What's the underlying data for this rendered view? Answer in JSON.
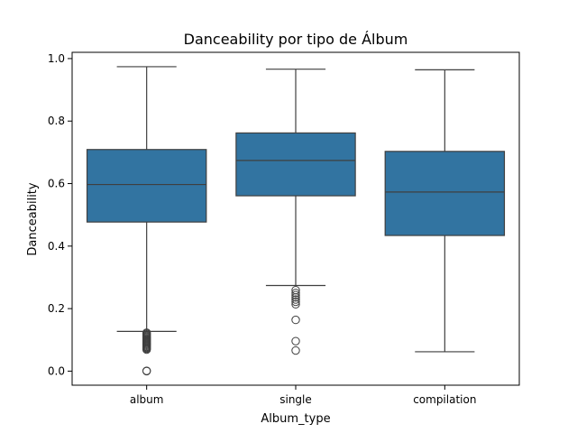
{
  "chart_data": {
    "type": "boxplot",
    "title": "Danceability por tipo de Álbum",
    "xlabel": "Album_type",
    "ylabel": "Danceability",
    "categories": [
      "album",
      "single",
      "compilation"
    ],
    "ylim": [
      -0.045,
      1.02
    ],
    "yticks": [
      0.0,
      0.2,
      0.4,
      0.6,
      0.8,
      1.0
    ],
    "ytick_labels": [
      "0.0",
      "0.2",
      "0.4",
      "0.6",
      "0.8",
      "1.0"
    ],
    "grid": false,
    "box_color": "#3274a1",
    "line_color": "#3f3f3f",
    "boxes": [
      {
        "category": "album",
        "whisker_low": 0.127,
        "q1": 0.477,
        "median": 0.597,
        "q3": 0.709,
        "whisker_high": 0.974,
        "outliers": [
          0.123,
          0.12,
          0.117,
          0.114,
          0.111,
          0.108,
          0.105,
          0.102,
          0.099,
          0.096,
          0.093,
          0.09,
          0.087,
          0.084,
          0.081,
          0.078,
          0.075,
          0.072,
          0.069,
          0.001,
          0.0
        ]
      },
      {
        "category": "single",
        "whisker_low": 0.274,
        "q1": 0.561,
        "median": 0.674,
        "q3": 0.762,
        "whisker_high": 0.966,
        "outliers": [
          0.259,
          0.25,
          0.243,
          0.236,
          0.229,
          0.222,
          0.214,
          0.164,
          0.096,
          0.066
        ]
      },
      {
        "category": "compilation",
        "whisker_low": 0.062,
        "q1": 0.434,
        "median": 0.573,
        "q3": 0.703,
        "whisker_high": 0.964,
        "outliers": []
      }
    ]
  }
}
